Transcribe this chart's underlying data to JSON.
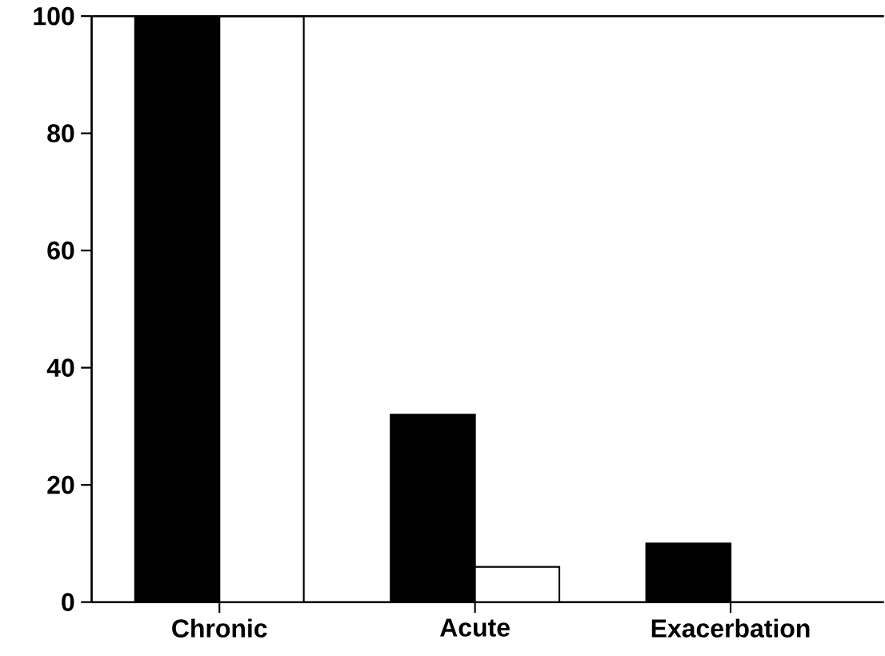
{
  "chart_data": {
    "type": "bar",
    "categories": [
      "Chronic",
      "Acute",
      "Exacerbation"
    ],
    "series": [
      {
        "color": "#000000",
        "values": [
          100,
          32,
          10
        ]
      },
      {
        "color": "#ffffff",
        "values": [
          100,
          6,
          0
        ]
      }
    ],
    "ylim": [
      0,
      100
    ],
    "yticks": [
      0,
      20,
      40,
      60,
      80,
      100
    ],
    "grid": false
  }
}
